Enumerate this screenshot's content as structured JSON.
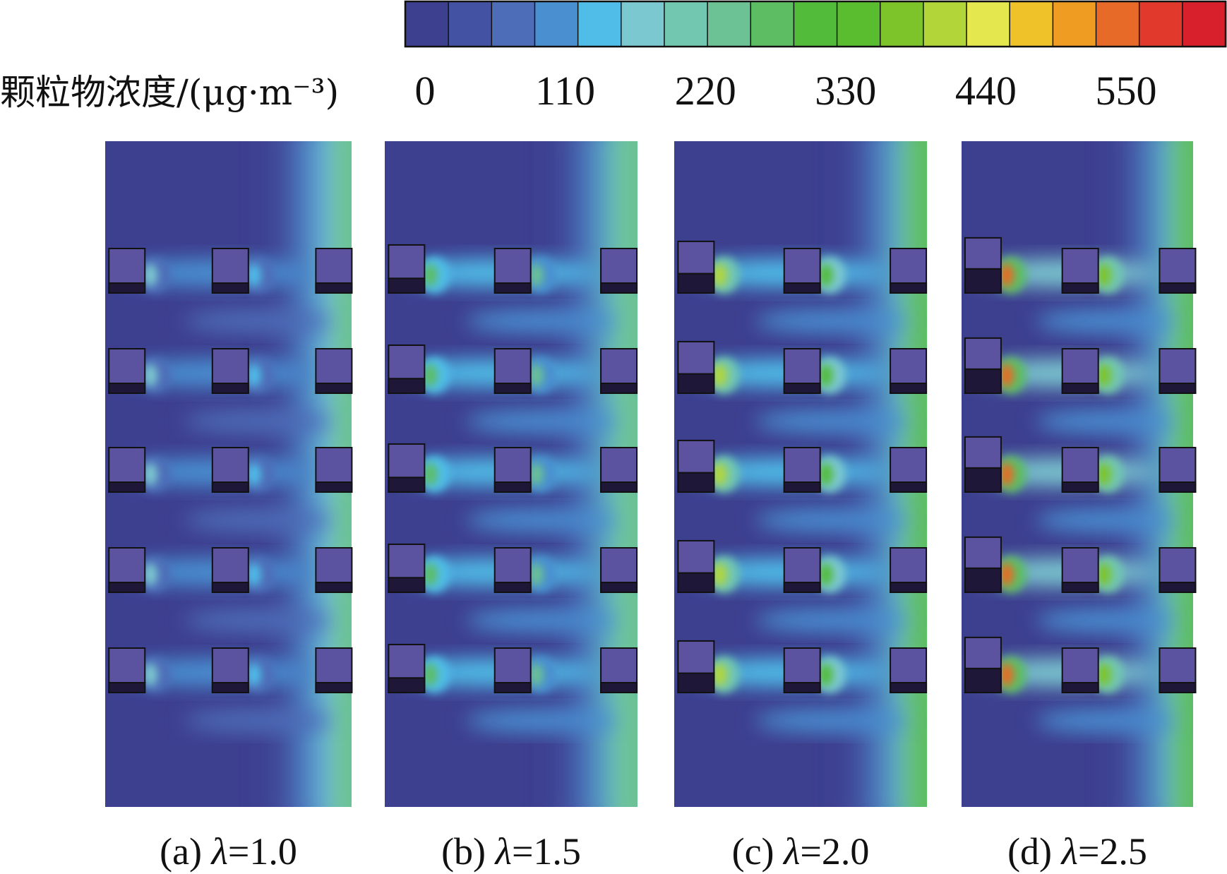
{
  "chart_data": {
    "type": "heatmap",
    "colorbar": {
      "title": "颗粒物浓度/(μg·m⁻³)",
      "ticks": [
        0,
        110,
        220,
        330,
        440,
        550
      ],
      "vmin": 0,
      "vmax": 605,
      "colors": [
        "#3d3f8f",
        "#4452a4",
        "#4e6db8",
        "#4a8fd0",
        "#4fbde8",
        "#7cc8d0",
        "#72c7b0",
        "#6cc294",
        "#5dbd63",
        "#52bb3a",
        "#59bd2f",
        "#7dc42b",
        "#b2d63a",
        "#e4e84e",
        "#efc22a",
        "#ef9c22",
        "#e86a28",
        "#e13a2c",
        "#d8202c"
      ]
    },
    "panels": [
      {
        "label": "(a)",
        "lambda_text": "λ=1.0",
        "lambda": 1.0
      },
      {
        "label": "(b)",
        "lambda_text": "λ=1.5",
        "lambda": 1.5
      },
      {
        "label": "(c)",
        "lambda_text": "λ=2.0",
        "lambda": 2.0
      },
      {
        "label": "(d)",
        "lambda_text": "λ=2.5",
        "lambda": 2.5
      }
    ],
    "building_grid": {
      "rows": 5,
      "columns": 3
    },
    "colors": {
      "background": "#3d3f8f",
      "building": "#5b53a0",
      "building_base": "#1e1738"
    }
  }
}
